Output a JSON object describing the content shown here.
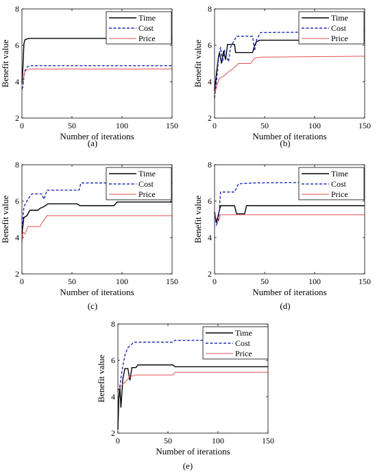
{
  "chart_data": [
    {
      "panel_label": "(a)",
      "type": "line",
      "xlabel": "Number of iterations",
      "ylabel": "Benefit value",
      "xlim": [
        0,
        150
      ],
      "ylim": [
        2,
        8
      ],
      "xticks": [
        0,
        50,
        100,
        150
      ],
      "yticks": [
        2,
        4,
        6,
        8
      ],
      "legend_position": "top-right",
      "series": [
        {
          "name": "Time",
          "color": "#000000",
          "dash": "solid",
          "points": [
            [
              0,
              3.9
            ],
            [
              1,
              4.8
            ],
            [
              2,
              6.1
            ],
            [
              3,
              6.3
            ],
            [
              5,
              6.35
            ],
            [
              8,
              6.38
            ],
            [
              150,
              6.38
            ]
          ]
        },
        {
          "name": "Cost",
          "color": "#1a2bb8",
          "dash": "dashed",
          "points": [
            [
              0,
              3.6
            ],
            [
              1,
              3.7
            ],
            [
              2,
              4.3
            ],
            [
              3,
              4.6
            ],
            [
              5,
              4.8
            ],
            [
              8,
              4.88
            ],
            [
              150,
              4.88
            ]
          ]
        },
        {
          "name": "Price",
          "color": "#e05050",
          "dash": "solid",
          "points": [
            [
              0,
              3.9
            ],
            [
              1,
              4.1
            ],
            [
              2,
              4.3
            ],
            [
              3,
              4.55
            ],
            [
              5,
              4.65
            ],
            [
              8,
              4.7
            ],
            [
              150,
              4.7
            ]
          ]
        }
      ]
    },
    {
      "panel_label": "(b)",
      "type": "line",
      "xlabel": "Number of iterations",
      "ylabel": "Benefit value",
      "xlim": [
        0,
        150
      ],
      "ylim": [
        2,
        8
      ],
      "xticks": [
        0,
        50,
        100,
        150
      ],
      "yticks": [
        2,
        4,
        6,
        8
      ],
      "legend_position": "top-right",
      "series": [
        {
          "name": "Time",
          "color": "#000000",
          "dash": "solid",
          "points": [
            [
              0,
              3.5
            ],
            [
              2,
              4.5
            ],
            [
              4,
              5.4
            ],
            [
              5,
              5.6
            ],
            [
              7,
              5.0
            ],
            [
              9,
              5.7
            ],
            [
              11,
              5.2
            ],
            [
              13,
              6.05
            ],
            [
              20,
              6.05
            ],
            [
              21,
              5.6
            ],
            [
              38,
              5.6
            ],
            [
              40,
              6.0
            ],
            [
              42,
              6.2
            ],
            [
              45,
              6.28
            ],
            [
              150,
              6.28
            ]
          ]
        },
        {
          "name": "Cost",
          "color": "#1a2bb8",
          "dash": "dashed",
          "points": [
            [
              0,
              3.1
            ],
            [
              2,
              4.0
            ],
            [
              4,
              5.3
            ],
            [
              6,
              5.9
            ],
            [
              8,
              5.1
            ],
            [
              10,
              5.7
            ],
            [
              14,
              5.1
            ],
            [
              16,
              5.9
            ],
            [
              22,
              6.5
            ],
            [
              38,
              6.5
            ],
            [
              40,
              5.7
            ],
            [
              42,
              6.3
            ],
            [
              46,
              6.7
            ],
            [
              150,
              6.75
            ]
          ]
        },
        {
          "name": "Price",
          "color": "#e05050",
          "dash": "solid",
          "points": [
            [
              0,
              3.3
            ],
            [
              3,
              3.9
            ],
            [
              5,
              4.2
            ],
            [
              9,
              4.3
            ],
            [
              13,
              4.5
            ],
            [
              18,
              4.7
            ],
            [
              24,
              5.0
            ],
            [
              36,
              5.0
            ],
            [
              40,
              5.3
            ],
            [
              46,
              5.35
            ],
            [
              150,
              5.4
            ]
          ]
        }
      ]
    },
    {
      "panel_label": "(c)",
      "type": "line",
      "xlabel": "Number of iterations",
      "ylabel": "Benefit value",
      "xlim": [
        0,
        150
      ],
      "ylim": [
        2,
        8
      ],
      "xticks": [
        0,
        50,
        100,
        150
      ],
      "yticks": [
        2,
        4,
        6,
        8
      ],
      "legend_position": "top-right",
      "series": [
        {
          "name": "Time",
          "color": "#000000",
          "dash": "solid",
          "points": [
            [
              0,
              4.2
            ],
            [
              2,
              5.1
            ],
            [
              5,
              5.2
            ],
            [
              8,
              5.5
            ],
            [
              16,
              5.5
            ],
            [
              18,
              5.6
            ],
            [
              22,
              5.7
            ],
            [
              26,
              5.85
            ],
            [
              55,
              5.85
            ],
            [
              58,
              5.75
            ],
            [
              92,
              5.75
            ],
            [
              95,
              5.95
            ],
            [
              150,
              5.95
            ]
          ]
        },
        {
          "name": "Cost",
          "color": "#1a2bb8",
          "dash": "dashed",
          "points": [
            [
              0,
              4.5
            ],
            [
              2,
              5.7
            ],
            [
              6,
              6.1
            ],
            [
              10,
              6.4
            ],
            [
              20,
              6.4
            ],
            [
              22,
              6.1
            ],
            [
              25,
              6.6
            ],
            [
              57,
              6.6
            ],
            [
              59,
              7.0
            ],
            [
              150,
              7.0
            ]
          ]
        },
        {
          "name": "Price",
          "color": "#e05050",
          "dash": "solid",
          "points": [
            [
              0,
              3.7
            ],
            [
              1,
              4.3
            ],
            [
              3,
              4.2
            ],
            [
              6,
              4.6
            ],
            [
              18,
              4.6
            ],
            [
              20,
              4.8
            ],
            [
              25,
              5.2
            ],
            [
              150,
              5.2
            ]
          ]
        }
      ]
    },
    {
      "panel_label": "(d)",
      "type": "line",
      "xlabel": "Number of iterations",
      "ylabel": "Benefit value",
      "xlim": [
        0,
        150
      ],
      "ylim": [
        2,
        8
      ],
      "xticks": [
        0,
        50,
        100,
        150
      ],
      "yticks": [
        2,
        4,
        6,
        8
      ],
      "legend_position": "top-right",
      "series": [
        {
          "name": "Time",
          "color": "#000000",
          "dash": "solid",
          "points": [
            [
              0,
              5.4
            ],
            [
              2,
              4.8
            ],
            [
              4,
              5.3
            ],
            [
              6,
              5.75
            ],
            [
              20,
              5.75
            ],
            [
              22,
              5.3
            ],
            [
              30,
              5.3
            ],
            [
              32,
              5.75
            ],
            [
              150,
              5.75
            ]
          ]
        },
        {
          "name": "Cost",
          "color": "#1a2bb8",
          "dash": "dashed",
          "points": [
            [
              0,
              5.2
            ],
            [
              2,
              4.7
            ],
            [
              4,
              5.0
            ],
            [
              6,
              6.5
            ],
            [
              20,
              6.5
            ],
            [
              24,
              6.95
            ],
            [
              40,
              7.0
            ],
            [
              150,
              7.05
            ]
          ]
        },
        {
          "name": "Price",
          "color": "#e05050",
          "dash": "solid",
          "points": [
            [
              0,
              5.3
            ],
            [
              2,
              5.0
            ],
            [
              4,
              4.9
            ],
            [
              6,
              5.25
            ],
            [
              150,
              5.25
            ]
          ]
        }
      ]
    },
    {
      "panel_label": "(e)",
      "type": "line",
      "xlabel": "Number of iterations",
      "ylabel": "Benefit value",
      "xlim": [
        0,
        150
      ],
      "ylim": [
        2,
        8
      ],
      "xticks": [
        0,
        50,
        100,
        150
      ],
      "yticks": [
        2,
        4,
        6,
        8
      ],
      "legend_position": "top-right",
      "series": [
        {
          "name": "Time",
          "color": "#000000",
          "dash": "solid",
          "points": [
            [
              0,
              2.2
            ],
            [
              1,
              4.0
            ],
            [
              2,
              4.5
            ],
            [
              3,
              3.4
            ],
            [
              5,
              5.0
            ],
            [
              7,
              5.55
            ],
            [
              10,
              5.55
            ],
            [
              12,
              4.9
            ],
            [
              14,
              5.6
            ],
            [
              18,
              5.6
            ],
            [
              20,
              5.75
            ],
            [
              55,
              5.75
            ],
            [
              57,
              5.65
            ],
            [
              150,
              5.65
            ]
          ]
        },
        {
          "name": "Cost",
          "color": "#1a2bb8",
          "dash": "dashed",
          "points": [
            [
              0,
              4.3
            ],
            [
              2,
              4.6
            ],
            [
              4,
              5.4
            ],
            [
              7,
              6.3
            ],
            [
              10,
              6.7
            ],
            [
              16,
              7.0
            ],
            [
              55,
              7.0
            ],
            [
              57,
              7.1
            ],
            [
              150,
              7.1
            ]
          ]
        },
        {
          "name": "Price",
          "color": "#e05050",
          "dash": "solid",
          "points": [
            [
              0,
              4.3
            ],
            [
              2,
              4.5
            ],
            [
              5,
              4.7
            ],
            [
              9,
              4.9
            ],
            [
              12,
              5.1
            ],
            [
              18,
              5.2
            ],
            [
              55,
              5.2
            ],
            [
              57,
              5.35
            ],
            [
              150,
              5.35
            ]
          ]
        }
      ]
    }
  ]
}
